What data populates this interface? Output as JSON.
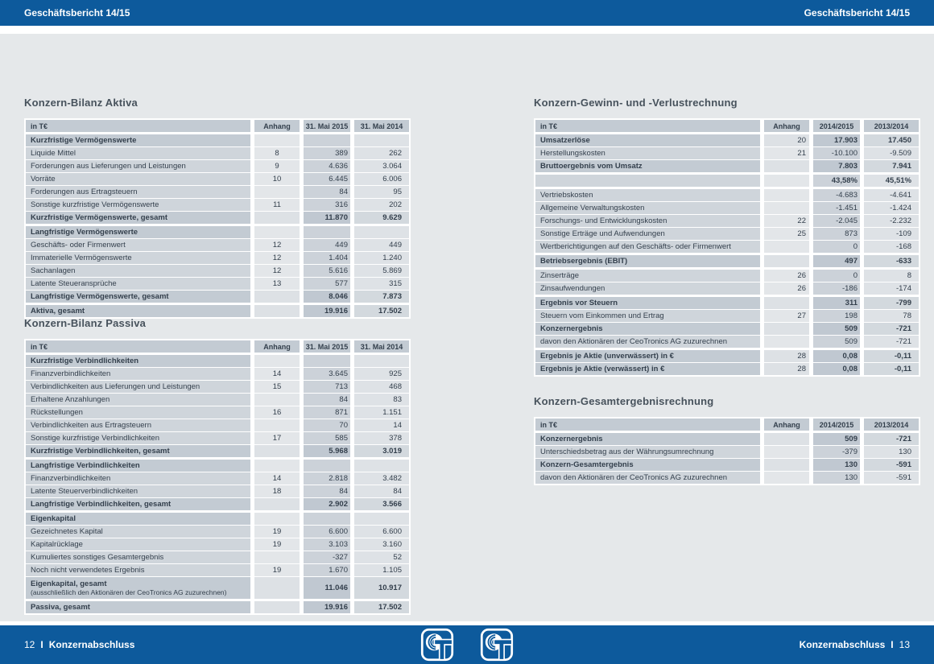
{
  "header": {
    "left_title": "Geschäftsbericht 14/15",
    "right_title": "Geschäftsbericht 14/15"
  },
  "footer": {
    "left": {
      "page_number": "12",
      "divider": "I",
      "label": "Konzernabschluss"
    },
    "right": {
      "label": "Konzernabschluss",
      "divider": "I",
      "page_number": "13"
    },
    "logo": "ceotronics-ct-logo"
  },
  "colors": {
    "accent_blue": "#0d5a9c",
    "page_background": "#e5e8ea",
    "table_header_bg": "#c3cbd3",
    "row_label_bg": "#cfd5db",
    "value_col_current_bg": "#ccd2d9",
    "value_col_prior_bg": "#dee2e6",
    "text": "#333f4c"
  },
  "tables": [
    {
      "id": "t-aktiva",
      "title": "Konzern-Bilanz Aktiva",
      "columns": [
        "in T€",
        "Anhang",
        "31. Mai 2015",
        "31. Mai 2014"
      ],
      "anhang_align": "center",
      "blocks": [
        {
          "rows": [
            {
              "label": "Kurzfristige Vermögenswerte",
              "style": "section"
            },
            {
              "label": "Liquide Mittel",
              "anhang": "8",
              "v1": "389",
              "v2": "262"
            },
            {
              "label": "Forderungen aus Lieferungen und Leistungen",
              "anhang": "9",
              "v1": "4.636",
              "v2": "3.064"
            },
            {
              "label": "Vorräte",
              "anhang": "10",
              "v1": "6.445",
              "v2": "6.006"
            },
            {
              "label": "Forderungen aus Ertragsteuern",
              "v1": "84",
              "v2": "95"
            },
            {
              "label": "Sonstige kurzfristige Vermögenswerte",
              "anhang": "11",
              "v1": "316",
              "v2": "202"
            },
            {
              "label": "Kurzfristige Vermögenswerte, gesamt",
              "v1": "11.870",
              "v2": "9.629",
              "style": "total"
            }
          ]
        },
        {
          "rows": [
            {
              "label": "Langfristige Vermögenswerte",
              "style": "section"
            },
            {
              "label": "Geschäfts- oder Firmenwert",
              "anhang": "12",
              "v1": "449",
              "v2": "449"
            },
            {
              "label": "Immaterielle Vermögenswerte",
              "anhang": "12",
              "v1": "1.404",
              "v2": "1.240"
            },
            {
              "label": "Sachanlagen",
              "anhang": "12",
              "v1": "5.616",
              "v2": "5.869"
            },
            {
              "label": "Latente Steueransprüche",
              "anhang": "13",
              "v1": "577",
              "v2": "315"
            },
            {
              "label": "Langfristige Vermögenswerte, gesamt",
              "v1": "8.046",
              "v2": "7.873",
              "style": "total"
            }
          ]
        },
        {
          "rows": [
            {
              "label": "Aktiva, gesamt",
              "v1": "19.916",
              "v2": "17.502",
              "style": "total"
            }
          ]
        }
      ]
    },
    {
      "id": "t-passiva",
      "title": "Konzern-Bilanz Passiva",
      "columns": [
        "in T€",
        "Anhang",
        "31. Mai 2015",
        "31. Mai 2014"
      ],
      "anhang_align": "center",
      "blocks": [
        {
          "rows": [
            {
              "label": "Kurzfristige Verbindlichkeiten",
              "style": "section"
            },
            {
              "label": "Finanzverbindlichkeiten",
              "anhang": "14",
              "v1": "3.645",
              "v2": "925"
            },
            {
              "label": "Verbindlichkeiten aus Lieferungen und Leistungen",
              "anhang": "15",
              "v1": "713",
              "v2": "468"
            },
            {
              "label": "Erhaltene Anzahlungen",
              "v1": "84",
              "v2": "83"
            },
            {
              "label": "Rückstellungen",
              "anhang": "16",
              "v1": "871",
              "v2": "1.151"
            },
            {
              "label": "Verbindlichkeiten aus Ertragsteuern",
              "v1": "70",
              "v2": "14"
            },
            {
              "label": "Sonstige kurzfristige Verbindlichkeiten",
              "anhang": "17",
              "v1": "585",
              "v2": "378"
            },
            {
              "label": "Kurzfristige Verbindlichkeiten, gesamt",
              "v1": "5.968",
              "v2": "3.019",
              "style": "total"
            }
          ]
        },
        {
          "rows": [
            {
              "label": "Langfristige Verbindlichkeiten",
              "style": "section"
            },
            {
              "label": "Finanzverbindlichkeiten",
              "anhang": "14",
              "v1": "2.818",
              "v2": "3.482"
            },
            {
              "label": "Latente Steuerverbindlichkeiten",
              "anhang": "18",
              "v1": "84",
              "v2": "84"
            },
            {
              "label": "Langfristige Verbindlichkeiten, gesamt",
              "v1": "2.902",
              "v2": "3.566",
              "style": "total"
            }
          ]
        },
        {
          "rows": [
            {
              "label": "Eigenkapital",
              "style": "section"
            },
            {
              "label": "Gezeichnetes Kapital",
              "anhang": "19",
              "v1": "6.600",
              "v2": "6.600"
            },
            {
              "label": "Kapitalrücklage",
              "anhang": "19",
              "v1": "3.103",
              "v2": "3.160"
            },
            {
              "label": "Kumuliertes sonstiges Gesamtergebnis",
              "v1": "-327",
              "v2": "52"
            },
            {
              "label": "Noch nicht verwendetes Ergebnis",
              "anhang": "19",
              "v1": "1.670",
              "v2": "1.105"
            },
            {
              "label": "Eigenkapital, gesamt",
              "sub": "(ausschließlich den Aktionären der CeoTronics AG zuzurechnen)",
              "v1": "11.046",
              "v2": "10.917",
              "style": "total"
            }
          ]
        },
        {
          "rows": [
            {
              "label": "Passiva, gesamt",
              "v1": "19.916",
              "v2": "17.502",
              "style": "total"
            }
          ]
        }
      ]
    },
    {
      "id": "t-guv",
      "title": "Konzern-Gewinn- und -Verlustrechnung",
      "columns": [
        "in T€",
        "Anhang",
        "2014/2015",
        "2013/2014"
      ],
      "anhang_align": "right",
      "blocks": [
        {
          "rows": [
            {
              "label": "Umsatzerlöse",
              "anhang": "20",
              "v1": "17.903",
              "v2": "17.450",
              "style": "total"
            },
            {
              "label": "Herstellungskosten",
              "anhang": "21",
              "v1": "-10.100",
              "v2": "-9.509"
            },
            {
              "label": "Bruttoergebnis vom Umsatz",
              "v1": "7.803",
              "v2": "7.941",
              "style": "total"
            }
          ]
        },
        {
          "rows": [
            {
              "label": "",
              "v1": "43,58%",
              "v2": "45,51%",
              "style": "percent"
            }
          ]
        },
        {
          "rows": [
            {
              "label": "Vertriebskosten",
              "v1": "-4.683",
              "v2": "-4.641"
            },
            {
              "label": "Allgemeine Verwaltungskosten",
              "v1": "-1.451",
              "v2": "-1.424"
            },
            {
              "label": "Forschungs- und Entwicklungskosten",
              "anhang": "22",
              "v1": "-2.045",
              "v2": "-2.232"
            },
            {
              "label": "Sonstige Erträge und Aufwendungen",
              "anhang": "25",
              "v1": "873",
              "v2": "-109"
            },
            {
              "label": "Wertberichtigungen auf den Geschäfts- oder Firmenwert",
              "v1": "0",
              "v2": "-168"
            }
          ]
        },
        {
          "rows": [
            {
              "label": "Betriebsergebnis (EBIT)",
              "v1": "497",
              "v2": "-633",
              "style": "total"
            }
          ]
        },
        {
          "rows": [
            {
              "label": "Zinserträge",
              "anhang": "26",
              "v1": "0",
              "v2": "8"
            },
            {
              "label": "Zinsaufwendungen",
              "anhang": "26",
              "v1": "-186",
              "v2": "-174"
            }
          ]
        },
        {
          "rows": [
            {
              "label": "Ergebnis vor Steuern",
              "v1": "311",
              "v2": "-799",
              "style": "total"
            },
            {
              "label": "Steuern vom Einkommen und Ertrag",
              "anhang": "27",
              "v1": "198",
              "v2": "78"
            },
            {
              "label": "Konzernergebnis",
              "v1": "509",
              "v2": "-721",
              "style": "total"
            },
            {
              "label": "davon den Aktionären der CeoTronics AG zuzurechnen",
              "v1": "509",
              "v2": "-721"
            }
          ]
        },
        {
          "rows": [
            {
              "label": "Ergebnis je Aktie (unverwässert) in €",
              "anhang": "28",
              "v1": "0,08",
              "v2": "-0,11",
              "style": "total"
            },
            {
              "label": "Ergebnis je Aktie (verwässert) in €",
              "anhang": "28",
              "v1": "0,08",
              "v2": "-0,11",
              "style": "total"
            }
          ]
        }
      ]
    },
    {
      "id": "t-gesamt",
      "title": "Konzern-Gesamtergebnisrechnung",
      "columns": [
        "in T€",
        "Anhang",
        "2014/2015",
        "2013/2014"
      ],
      "anhang_align": "right",
      "blocks": [
        {
          "rows": [
            {
              "label": "Konzernergebnis",
              "v1": "509",
              "v2": "-721",
              "style": "total"
            },
            {
              "label": "Unterschiedsbetrag aus der Währungsumrechnung",
              "v1": "-379",
              "v2": "130"
            },
            {
              "label": "Konzern-Gesamtergebnis",
              "v1": "130",
              "v2": "-591",
              "style": "total"
            },
            {
              "label": "davon den Aktionären der CeoTronics AG zuzurechnen",
              "v1": "130",
              "v2": "-591"
            }
          ]
        }
      ]
    }
  ]
}
